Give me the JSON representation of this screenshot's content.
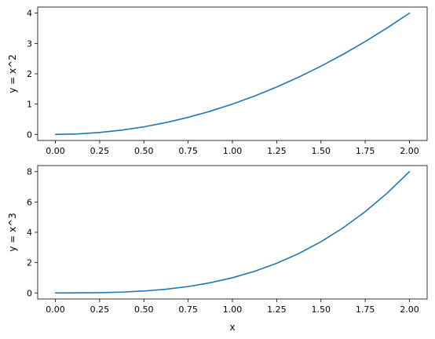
{
  "chart_data": [
    {
      "type": "line",
      "xlabel": "x",
      "ylabel": "y = x^2",
      "xlim": [
        -0.1,
        2.1
      ],
      "ylim": [
        -0.2,
        4.2
      ],
      "xticks": [
        "0.00",
        "0.25",
        "0.50",
        "0.75",
        "1.00",
        "1.25",
        "1.50",
        "1.75",
        "2.00"
      ],
      "yticks": [
        "0",
        "1",
        "2",
        "3",
        "4"
      ],
      "grid": false,
      "series": [
        {
          "color": "#1f77b4",
          "x": [
            0,
            0.125,
            0.25,
            0.375,
            0.5,
            0.625,
            0.75,
            0.875,
            1.0,
            1.125,
            1.25,
            1.375,
            1.5,
            1.625,
            1.75,
            1.875,
            2.0
          ],
          "y": [
            0,
            0.0156,
            0.0625,
            0.1406,
            0.25,
            0.3906,
            0.5625,
            0.7656,
            1.0,
            1.2656,
            1.5625,
            1.8906,
            2.25,
            2.6406,
            3.0625,
            3.5156,
            4.0
          ]
        }
      ]
    },
    {
      "type": "line",
      "xlabel": "x",
      "ylabel": "y = x^3",
      "xlim": [
        -0.1,
        2.1
      ],
      "ylim": [
        -0.4,
        8.4
      ],
      "xticks": [
        "0.00",
        "0.25",
        "0.50",
        "0.75",
        "1.00",
        "1.25",
        "1.50",
        "1.75",
        "2.00"
      ],
      "yticks": [
        "0",
        "2",
        "4",
        "6",
        "8"
      ],
      "grid": false,
      "series": [
        {
          "color": "#1f77b4",
          "x": [
            0,
            0.125,
            0.25,
            0.375,
            0.5,
            0.625,
            0.75,
            0.875,
            1.0,
            1.125,
            1.25,
            1.375,
            1.5,
            1.625,
            1.75,
            1.875,
            2.0
          ],
          "y": [
            0,
            0.002,
            0.0156,
            0.0527,
            0.125,
            0.2441,
            0.4219,
            0.6699,
            1.0,
            1.4238,
            1.9531,
            2.5996,
            3.375,
            4.291,
            5.3594,
            6.5918,
            8.0
          ]
        }
      ]
    }
  ]
}
